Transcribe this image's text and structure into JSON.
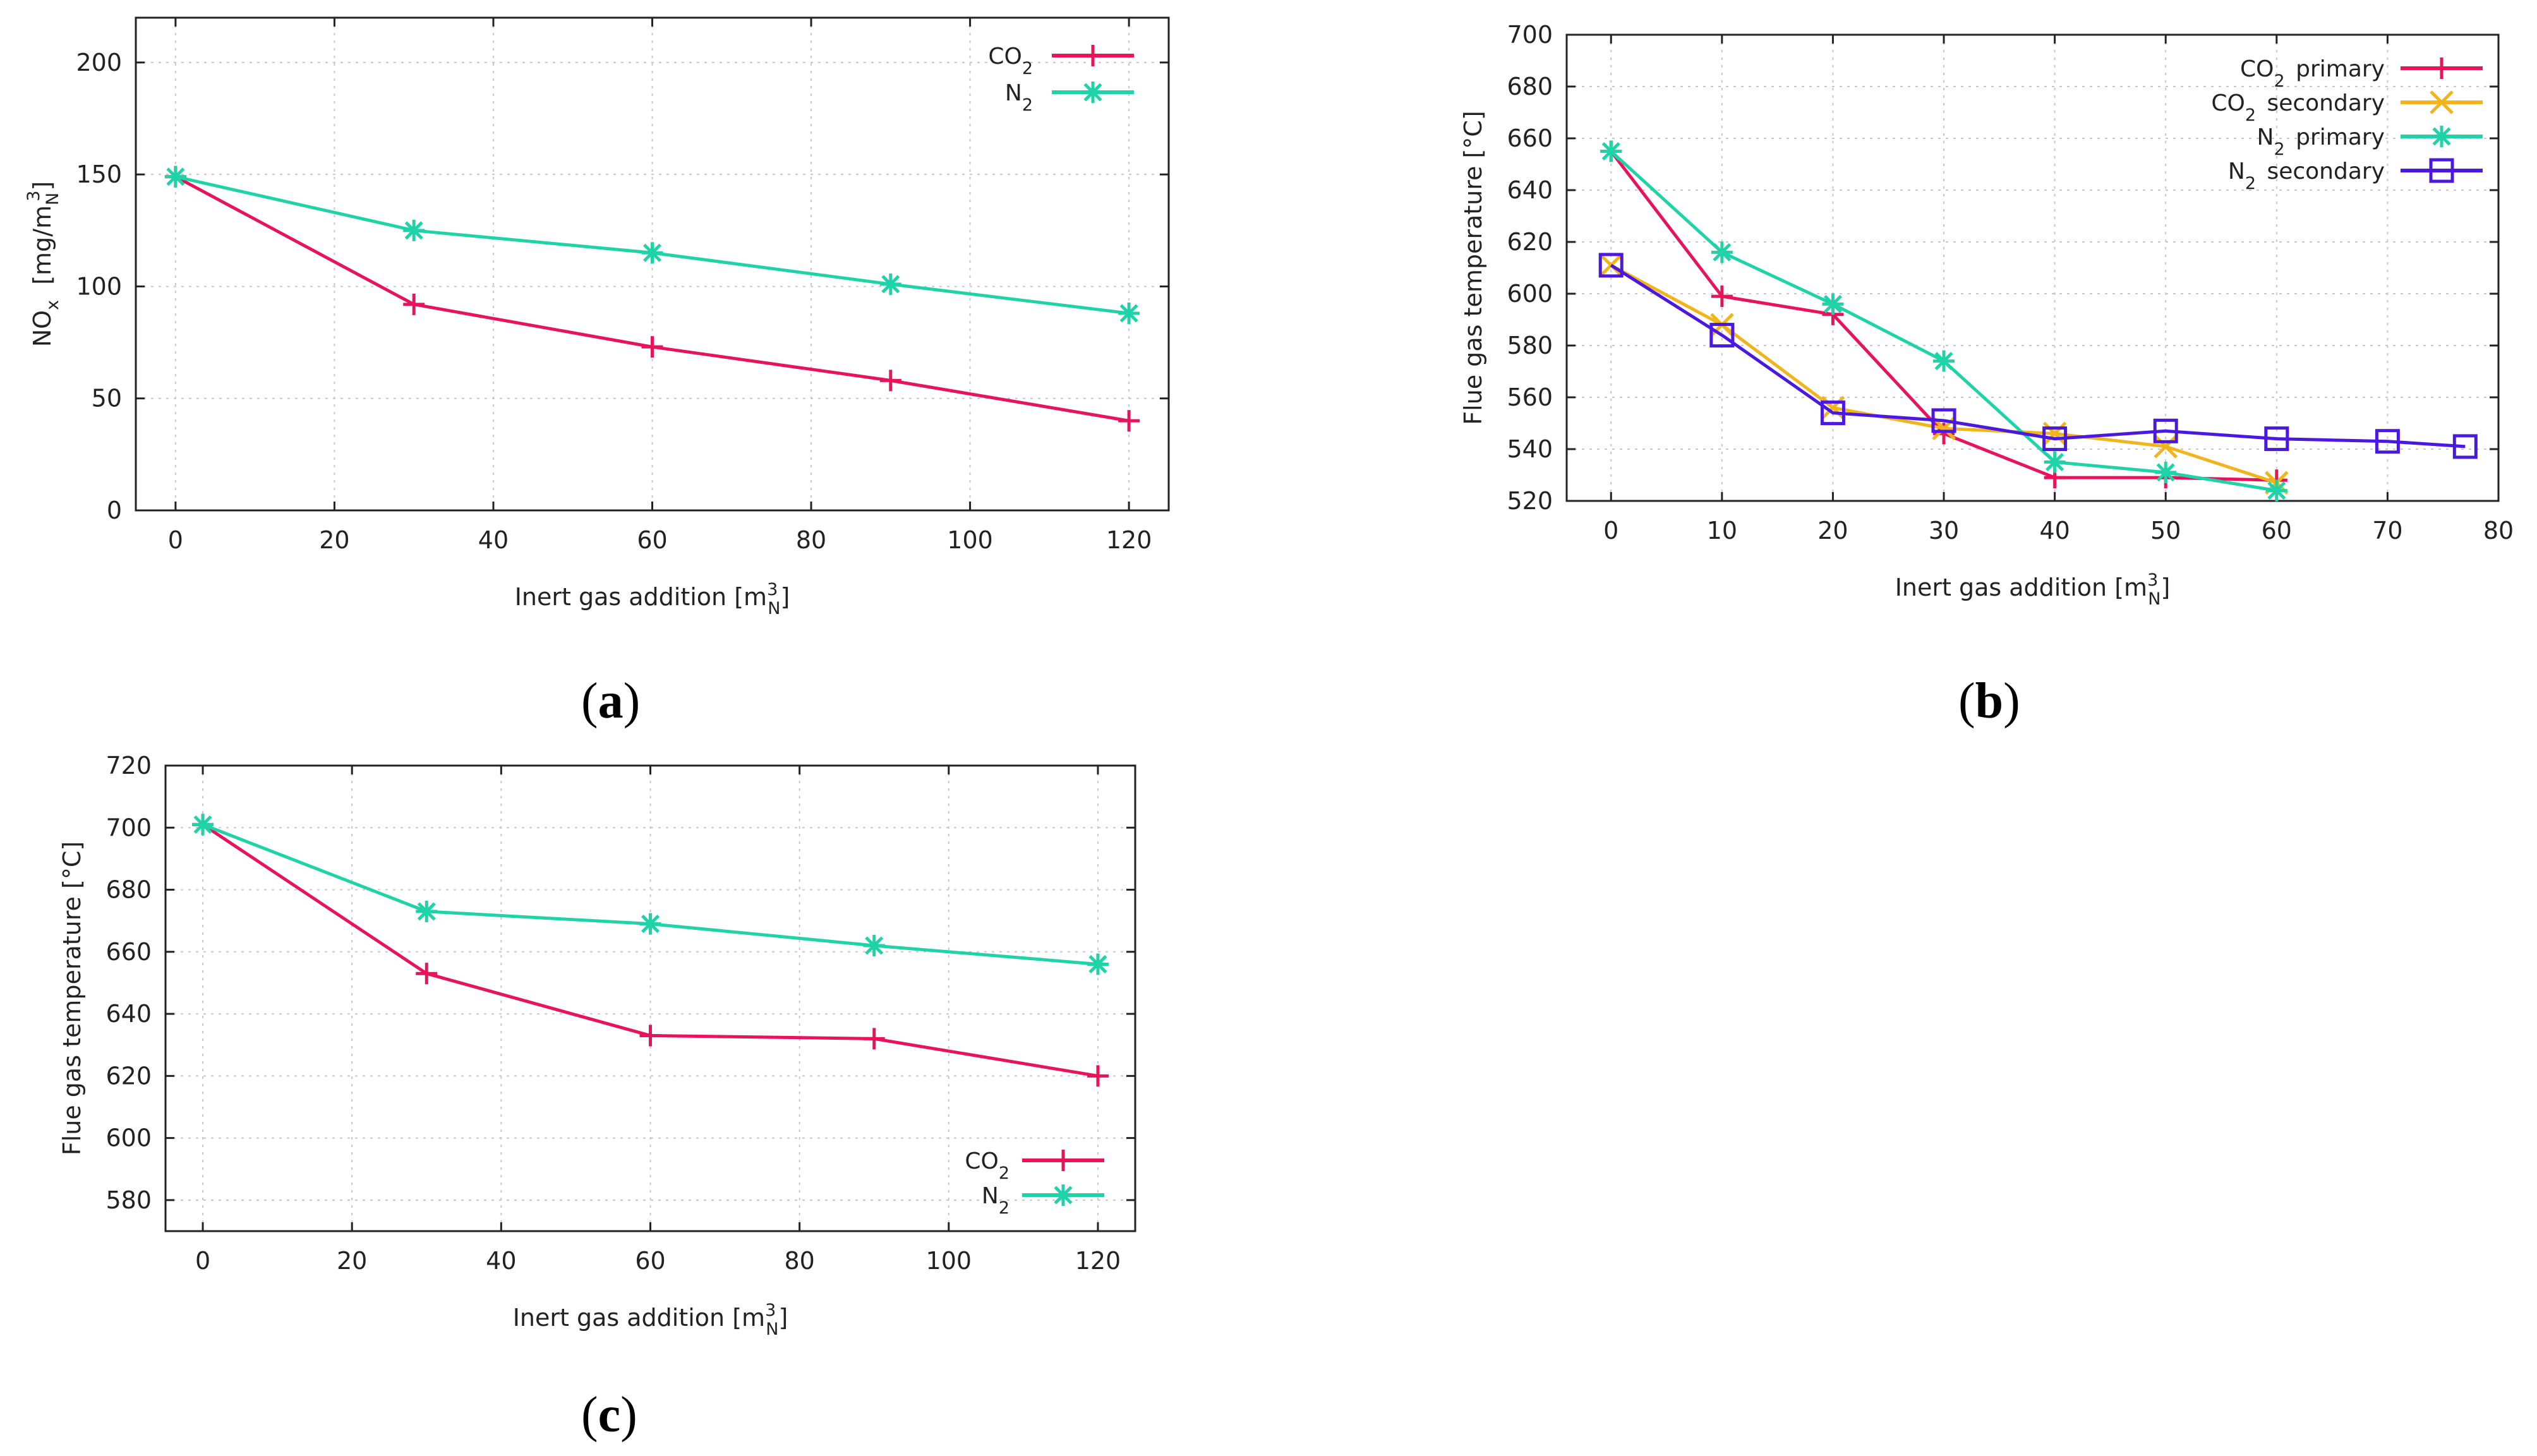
{
  "panel_labels": {
    "a": "a",
    "b": "b",
    "c": "c"
  },
  "chart_data": [
    {
      "id": "a",
      "type": "line",
      "xlabel": "Inert gas addition [m",
      "xlabel_sup": "3",
      "xlabel_sub": "N",
      "xlabel_end": "]",
      "ylabel_main": "NO",
      "ylabel_sub": "x",
      "ylabel_rest": "  [mg/m",
      "ylabel_rest_sub": "N",
      "ylabel_rest_sup": "3",
      "ylabel_end": "]",
      "xlim": [
        -5,
        125
      ],
      "ylim": [
        0,
        220
      ],
      "xticks": [
        0,
        20,
        40,
        60,
        80,
        100,
        120
      ],
      "yticks": [
        0,
        50,
        100,
        150,
        200
      ],
      "series": [
        {
          "name": "CO",
          "sub": "2",
          "tail": "",
          "color": "#e8145a",
          "marker": "plus",
          "x": [
            0,
            30,
            60,
            90,
            120
          ],
          "y": [
            149,
            92,
            73,
            58,
            40
          ]
        },
        {
          "name": "N",
          "sub": "2",
          "tail": "",
          "color": "#1ed3a8",
          "marker": "star",
          "x": [
            0,
            30,
            60,
            90,
            120
          ],
          "y": [
            149,
            125,
            115,
            101,
            88
          ]
        }
      ]
    },
    {
      "id": "b",
      "type": "line",
      "xlabel": "Inert gas addition [m",
      "xlabel_sup": "3",
      "xlabel_sub": "N",
      "xlabel_end": "]",
      "ylabel": "Flue gas temperature [°C]",
      "xlim": [
        -4,
        80
      ],
      "ylim": [
        520,
        700
      ],
      "xticks": [
        0,
        10,
        20,
        30,
        40,
        50,
        60,
        70,
        80
      ],
      "yticks": [
        520,
        540,
        560,
        580,
        600,
        620,
        640,
        660,
        680,
        700
      ],
      "series": [
        {
          "name": "CO",
          "sub": "2",
          "tail": " primary",
          "color": "#e8145a",
          "marker": "plus",
          "x": [
            0,
            10,
            20,
            30,
            40,
            50,
            60
          ],
          "y": [
            655,
            599,
            592,
            546,
            529,
            529,
            528
          ]
        },
        {
          "name": "CO",
          "sub": "2",
          "tail": " secondary",
          "color": "#f2b41c",
          "marker": "cross",
          "x": [
            0,
            10,
            20,
            30,
            40,
            50,
            60
          ],
          "y": [
            611,
            588,
            556,
            548,
            546,
            541,
            527
          ]
        },
        {
          "name": "N",
          "sub": "2",
          "tail": " primary",
          "color": "#1ed3a8",
          "marker": "star",
          "x": [
            0,
            10,
            20,
            30,
            40,
            50,
            60
          ],
          "y": [
            655,
            616,
            596,
            574,
            535,
            531,
            524
          ]
        },
        {
          "name": "N",
          "sub": "2",
          "tail": " secondary",
          "color": "#4b18e0",
          "marker": "square",
          "x": [
            0,
            10,
            20,
            30,
            40,
            50,
            60,
            70,
            77
          ],
          "y": [
            611,
            584,
            554,
            551,
            544,
            547,
            544,
            543,
            541
          ]
        }
      ]
    },
    {
      "id": "c",
      "type": "line",
      "xlabel": "Inert gas addition [m",
      "xlabel_sup": "3",
      "xlabel_sub": "N",
      "xlabel_end": "]",
      "ylabel": "Flue gas temperature [°C]",
      "xlim": [
        -5,
        125
      ],
      "ylim": [
        570,
        720
      ],
      "xticks": [
        0,
        20,
        40,
        60,
        80,
        100,
        120
      ],
      "yticks": [
        580,
        600,
        620,
        640,
        660,
        680,
        700,
        720
      ],
      "series": [
        {
          "name": "CO",
          "sub": "2",
          "tail": "",
          "color": "#e8145a",
          "marker": "plus",
          "x": [
            0,
            30,
            60,
            90,
            120
          ],
          "y": [
            701,
            653,
            633,
            632,
            620
          ]
        },
        {
          "name": "N",
          "sub": "2",
          "tail": "",
          "color": "#1ed3a8",
          "marker": "star",
          "x": [
            0,
            30,
            60,
            90,
            120
          ],
          "y": [
            701,
            673,
            669,
            662,
            656
          ]
        }
      ]
    }
  ]
}
